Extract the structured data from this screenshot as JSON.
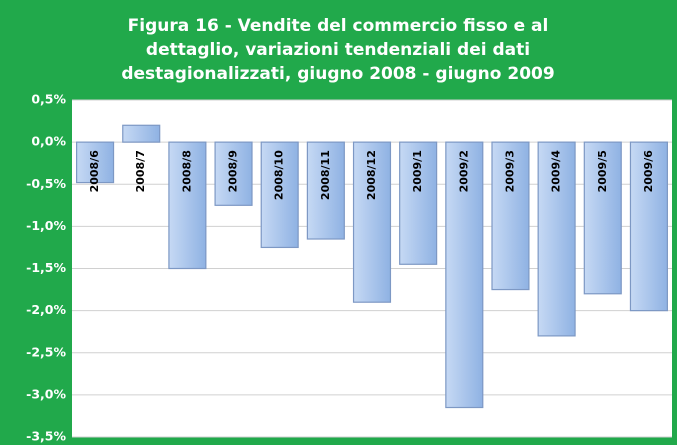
{
  "chart_data": {
    "type": "bar",
    "title": [
      "Figura 16 - Vendite del commercio fisso e al",
      "dettaglio,  variazioni tendenziali dei dati",
      "destagionalizzati, giugno 2008 - giugno 2009"
    ],
    "categories": [
      "2008/6",
      "2008/7",
      "2008/8",
      "2008/9",
      "2008/10",
      "2008/11",
      "2008/12",
      "2009/1",
      "2009/2",
      "2009/3",
      "2009/4",
      "2009/5",
      "2009/6"
    ],
    "values": [
      -0.48,
      0.2,
      -1.5,
      -0.75,
      -1.25,
      -1.15,
      -1.9,
      -1.45,
      -3.15,
      -1.75,
      -2.3,
      -1.8,
      -2.0
    ],
    "color": "#9dbce8",
    "ylim": [
      -3.5,
      0.5
    ],
    "yticks": [
      {
        "value": 0.5,
        "label": "0,5%"
      },
      {
        "value": 0,
        "label": "0,0%"
      },
      {
        "value": -0.5,
        "label": "-0,5%"
      },
      {
        "value": -1,
        "label": "-1,0%"
      },
      {
        "value": -1.5,
        "label": "-1,5%"
      },
      {
        "value": -2,
        "label": "-2,0%"
      },
      {
        "value": -2.5,
        "label": "-2,5%"
      },
      {
        "value": -3,
        "label": "-3,0%"
      },
      {
        "value": -3.5,
        "label": "-3,5%"
      }
    ],
    "grid": true
  }
}
